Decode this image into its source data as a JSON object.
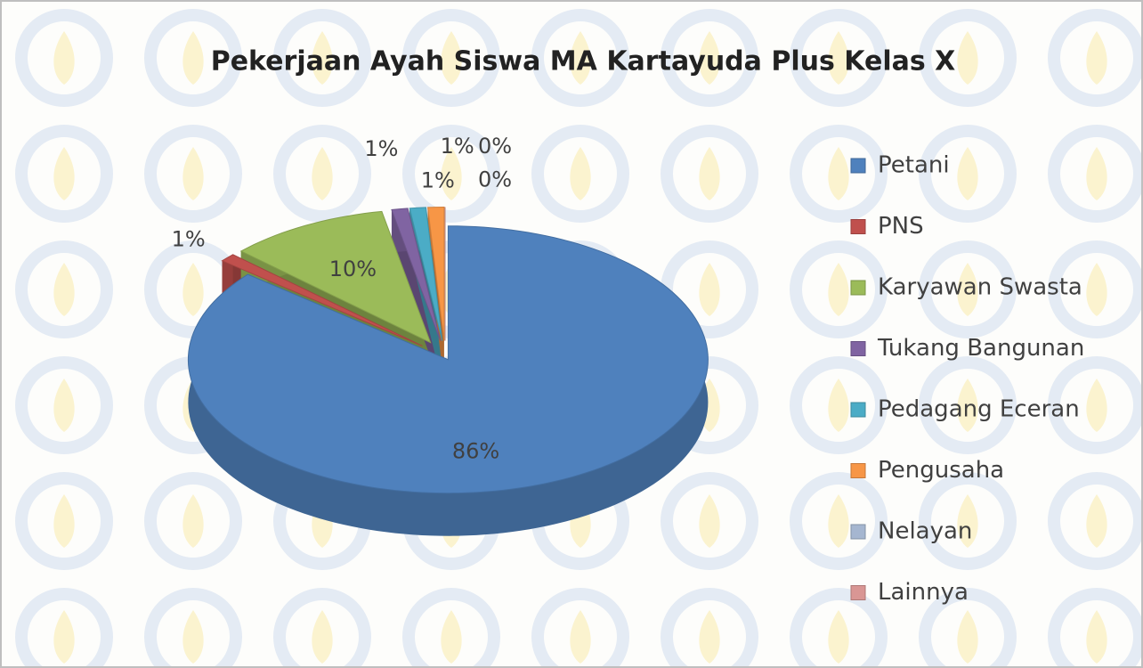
{
  "chart_data": {
    "type": "pie",
    "title": "Pekerjaan Ayah Siswa MA Kartayuda Plus Kelas X",
    "categories": [
      "Petani",
      "PNS",
      "Karyawan Swasta",
      "Tukang Bangunan",
      "Pedagang Eceran",
      "Pengusaha",
      "Nelayan",
      "Lainnya"
    ],
    "values": [
      86,
      1,
      10,
      1,
      1,
      1,
      0,
      0
    ],
    "value_labels": [
      "86%",
      "1%",
      "10%",
      "1%",
      "1%",
      "1%",
      "0%",
      "0%"
    ],
    "colors": [
      "#4f81bd",
      "#c0504d",
      "#9bbb59",
      "#8064a2",
      "#4bacc6",
      "#f79646",
      "#a5b6d0",
      "#d99694"
    ],
    "legend": "right"
  }
}
